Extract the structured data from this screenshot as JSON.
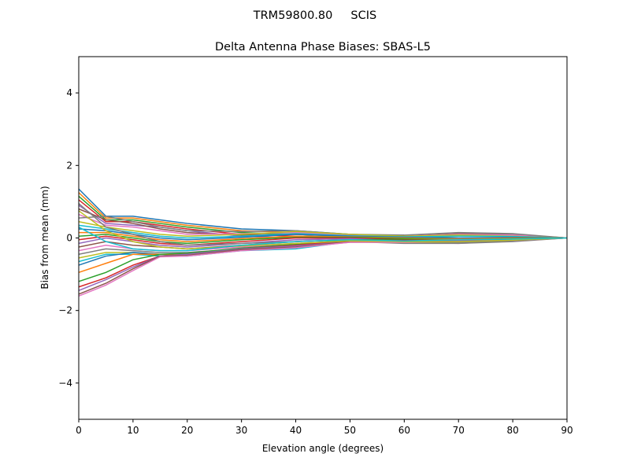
{
  "chart_data": {
    "type": "line",
    "suptitle": "TRM59800.80     SCIS",
    "title": "Delta Antenna Phase Biases: SBAS-L5",
    "xlabel": "Elevation angle (degrees)",
    "ylabel": "Bias from mean (mm)",
    "xlim": [
      0,
      90
    ],
    "ylim": [
      -5,
      5
    ],
    "xticks": [
      "0",
      "10",
      "20",
      "30",
      "40",
      "50",
      "60",
      "70",
      "80",
      "90"
    ],
    "yticks": [
      "−4",
      "−2",
      "0",
      "2",
      "4"
    ],
    "ytick_values": [
      -4,
      -2,
      0,
      2,
      4
    ],
    "grid": false,
    "colors": [
      "#1f77b4",
      "#ff7f0e",
      "#2ca02c",
      "#d62728",
      "#9467bd",
      "#8c564b",
      "#e377c2",
      "#7f7f7f",
      "#bcbd22",
      "#17becf"
    ],
    "x": [
      0,
      5,
      10,
      15,
      20,
      30,
      40,
      50,
      60,
      70,
      80,
      90
    ],
    "series": [
      {
        "values": [
          1.35,
          0.6,
          0.6,
          0.5,
          0.4,
          0.25,
          0.2,
          0.1,
          0.05,
          -0.05,
          -0.05,
          0
        ]
      },
      {
        "values": [
          1.25,
          0.55,
          0.55,
          0.45,
          0.35,
          0.2,
          0.15,
          0.08,
          0.05,
          0,
          0,
          0
        ]
      },
      {
        "values": [
          1.15,
          0.5,
          0.5,
          0.4,
          0.3,
          0.15,
          0.1,
          0.05,
          0.02,
          0.05,
          0.05,
          0
        ]
      },
      {
        "values": [
          1.05,
          0.45,
          0.45,
          0.35,
          0.25,
          0.1,
          0.05,
          0.02,
          0,
          0.08,
          0.06,
          0
        ]
      },
      {
        "values": [
          0.9,
          0.4,
          0.35,
          0.3,
          0.2,
          0.05,
          0,
          0,
          -0.02,
          0.1,
          0.08,
          0
        ]
      },
      {
        "values": [
          0.8,
          0.5,
          0.4,
          0.25,
          0.15,
          0.08,
          0.1,
          0.05,
          0.05,
          0.12,
          0.1,
          0
        ]
      },
      {
        "values": [
          0.65,
          0.35,
          0.3,
          0.2,
          0.1,
          0.12,
          0.15,
          0.08,
          0.05,
          0.1,
          0.08,
          0
        ]
      },
      {
        "values": [
          0.55,
          0.6,
          0.45,
          0.3,
          0.2,
          0.18,
          0.2,
          0.1,
          0.08,
          0.15,
          0.12,
          0
        ]
      },
      {
        "values": [
          0.45,
          0.3,
          0.2,
          0.1,
          0.05,
          0.1,
          0.18,
          0.1,
          0.05,
          0.08,
          0.05,
          0
        ]
      },
      {
        "values": [
          0.35,
          0.25,
          0.15,
          0.05,
          0,
          0.05,
          0.12,
          0.06,
          0.03,
          0.05,
          0.04,
          0
        ]
      },
      {
        "values": [
          0.25,
          0.2,
          0.1,
          0,
          -0.05,
          0.02,
          0.1,
          0.05,
          0.02,
          0,
          0.02,
          0
        ]
      },
      {
        "values": [
          0.15,
          0.15,
          0.05,
          -0.05,
          -0.1,
          -0.02,
          0.05,
          0.03,
          0,
          -0.03,
          0,
          0
        ]
      },
      {
        "values": [
          0.05,
          0.1,
          0,
          -0.1,
          -0.15,
          -0.05,
          0.02,
          0.02,
          -0.02,
          -0.05,
          -0.02,
          0
        ]
      },
      {
        "values": [
          -0.05,
          0.05,
          -0.05,
          -0.15,
          -0.2,
          -0.1,
          0,
          0,
          -0.05,
          -0.08,
          -0.04,
          0
        ]
      },
      {
        "values": [
          -0.15,
          0,
          -0.1,
          -0.2,
          -0.25,
          -0.15,
          -0.05,
          -0.02,
          -0.08,
          -0.1,
          -0.05,
          0
        ]
      },
      {
        "values": [
          -0.25,
          -0.1,
          -0.2,
          -0.25,
          -0.3,
          -0.2,
          -0.1,
          -0.05,
          -0.1,
          -0.12,
          -0.06,
          0
        ]
      },
      {
        "values": [
          -0.35,
          -0.2,
          -0.3,
          -0.35,
          -0.35,
          -0.25,
          -0.15,
          -0.08,
          -0.12,
          -0.15,
          -0.08,
          0
        ]
      },
      {
        "values": [
          -0.45,
          -0.3,
          -0.35,
          -0.4,
          -0.4,
          -0.3,
          -0.2,
          -0.1,
          -0.15,
          -0.15,
          -0.1,
          0
        ]
      },
      {
        "values": [
          -0.55,
          -0.4,
          -0.4,
          -0.45,
          -0.45,
          -0.32,
          -0.25,
          -0.12,
          -0.12,
          -0.12,
          -0.08,
          0
        ]
      },
      {
        "values": [
          -0.65,
          -0.45,
          -0.45,
          -0.5,
          -0.5,
          -0.35,
          -0.3,
          -0.1,
          -0.1,
          -0.1,
          -0.06,
          0
        ]
      },
      {
        "values": [
          -0.75,
          -0.5,
          -0.4,
          -0.45,
          -0.48,
          -0.3,
          -0.25,
          -0.08,
          -0.08,
          -0.08,
          -0.05,
          0
        ]
      },
      {
        "values": [
          -0.95,
          -0.7,
          -0.45,
          -0.45,
          -0.45,
          -0.3,
          -0.2,
          -0.05,
          -0.05,
          -0.05,
          -0.04,
          0
        ]
      },
      {
        "values": [
          -1.2,
          -0.95,
          -0.6,
          -0.45,
          -0.42,
          -0.28,
          -0.18,
          -0.05,
          -0.05,
          -0.06,
          -0.04,
          0
        ]
      },
      {
        "values": [
          -1.35,
          -1.1,
          -0.75,
          -0.5,
          -0.45,
          -0.3,
          -0.2,
          -0.08,
          -0.06,
          -0.06,
          -0.05,
          0
        ]
      },
      {
        "values": [
          -1.45,
          -1.15,
          -0.8,
          -0.5,
          -0.45,
          -0.3,
          -0.22,
          -0.1,
          -0.08,
          -0.08,
          -0.06,
          0
        ]
      },
      {
        "values": [
          -1.55,
          -1.25,
          -0.85,
          -0.5,
          -0.48,
          -0.32,
          -0.25,
          -0.1,
          -0.1,
          -0.1,
          -0.07,
          0
        ]
      },
      {
        "values": [
          -1.6,
          -1.3,
          -0.9,
          -0.52,
          -0.5,
          -0.35,
          -0.27,
          -0.12,
          -0.12,
          -0.1,
          -0.08,
          0
        ]
      },
      {
        "values": [
          0.95,
          0.3,
          0.1,
          -0.1,
          -0.2,
          -0.15,
          -0.1,
          -0.05,
          -0.1,
          -0.12,
          -0.08,
          0
        ]
      },
      {
        "values": [
          0.75,
          0.2,
          -0.1,
          -0.25,
          -0.3,
          -0.22,
          -0.15,
          -0.08,
          -0.1,
          -0.1,
          -0.06,
          0
        ]
      },
      {
        "values": [
          0.3,
          -0.1,
          -0.3,
          -0.35,
          -0.35,
          -0.2,
          -0.1,
          -0.05,
          -0.08,
          -0.05,
          -0.03,
          0
        ]
      }
    ]
  }
}
